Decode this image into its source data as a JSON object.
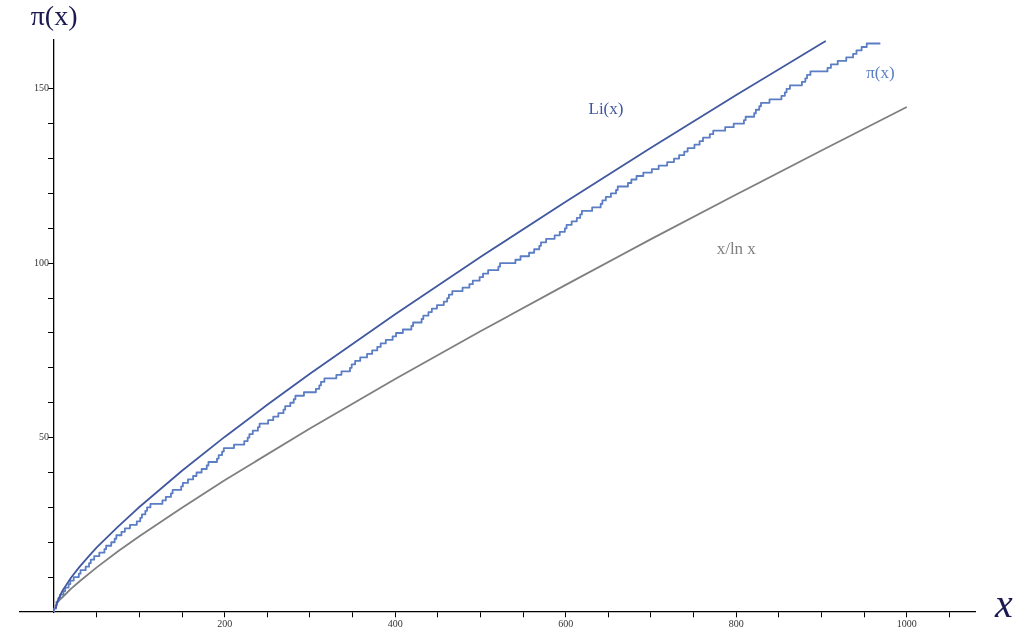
{
  "chart_data": {
    "type": "line",
    "xlabel": "x",
    "ylabel": "π(x)",
    "xlim": [
      -40,
      1080
    ],
    "ylim": [
      0,
      164
    ],
    "xticks": [
      {
        "value": 50,
        "label": null
      },
      {
        "value": 100,
        "label": null
      },
      {
        "value": 150,
        "label": null
      },
      200,
      {
        "value": 250,
        "label": null
      },
      {
        "value": 300,
        "label": null
      },
      {
        "value": 350,
        "label": null
      },
      400,
      {
        "value": 450,
        "label": null
      },
      {
        "value": 500,
        "label": null
      },
      {
        "value": 550,
        "label": null
      },
      600,
      {
        "value": 650,
        "label": null
      },
      {
        "value": 700,
        "label": null
      },
      {
        "value": 750,
        "label": null
      },
      800,
      {
        "value": 850,
        "label": null
      },
      {
        "value": 900,
        "label": null
      },
      {
        "value": 950,
        "label": null
      },
      1000,
      {
        "value": 1050,
        "label": null
      }
    ],
    "yticks": [
      {
        "value": 10,
        "label": null
      },
      {
        "value": 20,
        "label": null
      },
      {
        "value": 30,
        "label": null
      },
      {
        "value": 40,
        "label": null
      },
      50,
      {
        "value": 60,
        "label": null
      },
      {
        "value": 70,
        "label": null
      },
      {
        "value": 80,
        "label": null
      },
      {
        "value": 90,
        "label": null
      },
      100,
      {
        "value": 110,
        "label": null
      },
      {
        "value": 120,
        "label": null
      },
      {
        "value": 130,
        "label": null
      },
      {
        "value": 140,
        "label": null
      },
      150
    ],
    "series": [
      {
        "name": "Li(x)",
        "type": "line",
        "color": "#41589f",
        "x": [
          2,
          3,
          5,
          10,
          20,
          30,
          40,
          50,
          75,
          100,
          150,
          200,
          250,
          300,
          400,
          500,
          600,
          700,
          800,
          900,
          905
        ],
        "values": [
          1.0,
          2.2,
          3.6,
          6.2,
          9.9,
          13.0,
          15.8,
          18.5,
          24.5,
          30.1,
          40.5,
          50.2,
          59.4,
          68.3,
          85.4,
          101.8,
          117.6,
          133.1,
          148.2,
          163.0,
          163.7
        ]
      },
      {
        "name": "π(x)",
        "type": "step",
        "color": "#5a7dc4",
        "x": [
          0,
          2,
          3,
          5,
          7,
          11,
          13,
          17,
          19,
          23,
          29,
          31,
          37,
          41,
          43,
          47,
          53,
          59,
          61,
          67,
          71,
          73,
          79,
          83,
          89,
          97,
          101,
          103,
          107,
          109,
          113,
          127,
          131,
          137,
          139,
          149,
          151,
          157,
          163,
          167,
          173,
          179,
          181,
          191,
          193,
          197,
          199,
          211,
          223,
          227,
          229,
          233,
          239,
          241,
          251,
          257,
          263,
          269,
          271,
          277,
          281,
          283,
          293,
          307,
          311,
          313,
          317,
          331,
          337,
          347,
          349,
          353,
          359,
          367,
          373,
          379,
          383,
          389,
          397,
          401,
          409,
          419,
          421,
          431,
          433,
          439,
          443,
          449,
          457,
          461,
          463,
          467,
          479,
          487,
          491,
          499,
          503,
          509,
          521,
          523,
          541,
          547,
          557,
          563,
          569,
          571,
          577,
          587,
          593,
          599,
          601,
          607,
          613,
          617,
          619,
          631,
          641,
          643,
          647,
          653,
          659,
          661,
          673,
          677,
          683,
          691,
          701,
          709,
          719,
          727,
          733,
          739,
          743,
          751,
          757,
          761,
          769,
          773,
          787,
          797,
          809,
          811,
          821,
          823,
          827,
          829,
          839,
          853,
          857,
          859,
          863,
          877,
          881,
          883,
          887,
          907,
          911,
          919,
          929,
          937,
          941,
          947,
          953,
          967,
          969
        ],
        "values": [
          0,
          1,
          2,
          3,
          4,
          5,
          6,
          7,
          8,
          9,
          10,
          11,
          12,
          13,
          14,
          15,
          16,
          17,
          18,
          19,
          20,
          21,
          22,
          23,
          24,
          25,
          26,
          27,
          28,
          29,
          30,
          31,
          32,
          33,
          34,
          35,
          36,
          37,
          38,
          39,
          40,
          41,
          42,
          43,
          44,
          45,
          46,
          47,
          48,
          49,
          50,
          51,
          52,
          53,
          54,
          55,
          56,
          57,
          58,
          59,
          60,
          61,
          62,
          63,
          64,
          65,
          66,
          67,
          68,
          69,
          70,
          71,
          72,
          73,
          74,
          75,
          76,
          77,
          78,
          79,
          80,
          81,
          82,
          83,
          84,
          85,
          86,
          87,
          88,
          89,
          90,
          91,
          92,
          93,
          94,
          95,
          96,
          97,
          98,
          99,
          100,
          101,
          102,
          103,
          104,
          105,
          106,
          107,
          108,
          109,
          110,
          111,
          112,
          113,
          114,
          115,
          116,
          117,
          118,
          119,
          120,
          121,
          122,
          123,
          124,
          125,
          126,
          127,
          128,
          129,
          130,
          131,
          132,
          133,
          134,
          135,
          136,
          137,
          138,
          139,
          140,
          141,
          142,
          143,
          144,
          145,
          146,
          147,
          148,
          149,
          150,
          151,
          152,
          153,
          154,
          155,
          156,
          157,
          158,
          159,
          160,
          161,
          162,
          163,
          163
        ]
      },
      {
        "name": "x/ln x",
        "type": "line",
        "color": "#7f7f7f",
        "x": [
          2,
          3,
          5,
          10,
          20,
          30,
          50,
          75,
          100,
          150,
          200,
          300,
          400,
          500,
          600,
          700,
          800,
          900,
          1000
        ],
        "values": [
          2.9,
          2.7,
          3.1,
          4.3,
          6.7,
          8.8,
          12.8,
          17.4,
          21.7,
          29.9,
          37.8,
          52.6,
          66.8,
          80.5,
          93.8,
          106.9,
          119.7,
          132.3,
          144.8
        ]
      }
    ]
  }
}
